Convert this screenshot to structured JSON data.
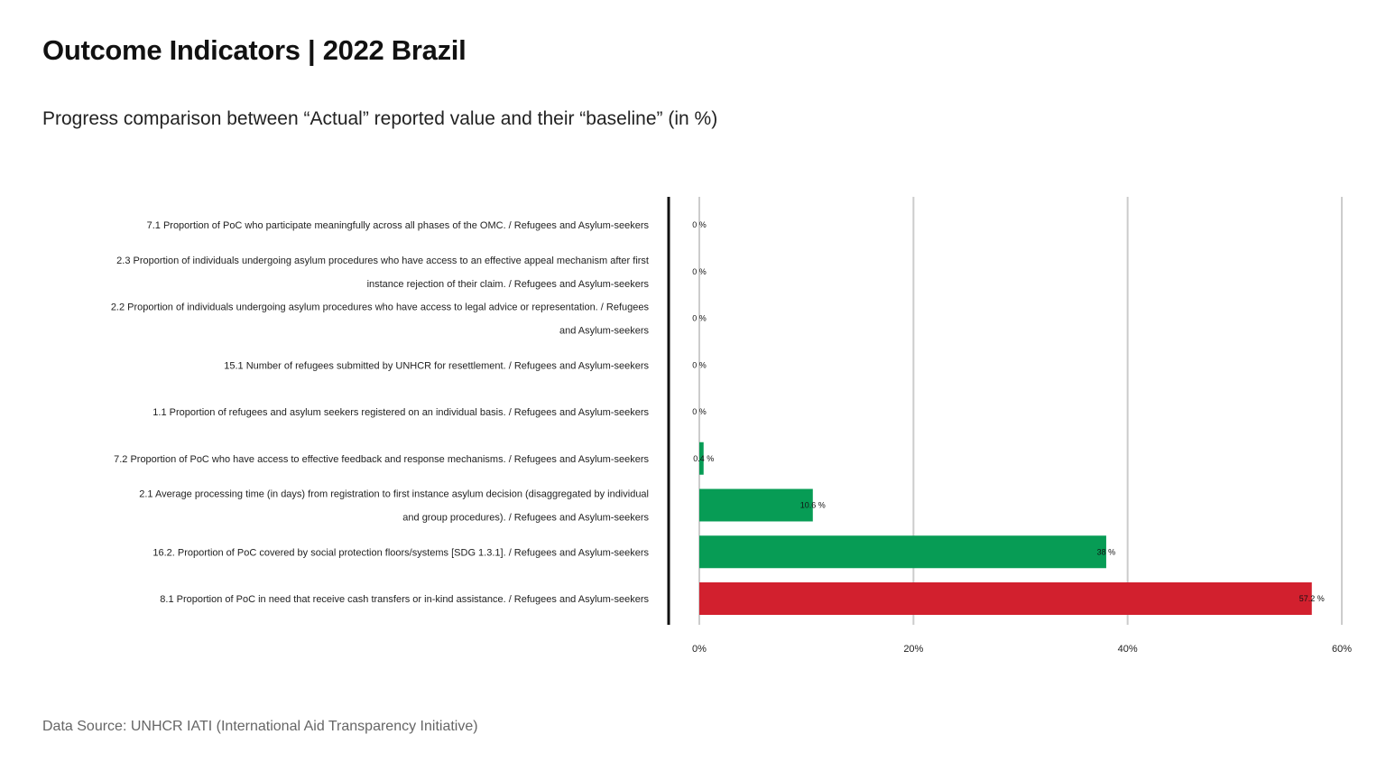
{
  "page": {
    "title": "Outcome Indicators | 2022 Brazil",
    "subtitle": "Progress comparison between “Actual” reported value and their “baseline” (in %)",
    "source": "Data Source: UNHCR IATI (International Aid Transparency Initiative)"
  },
  "colors": {
    "green": "#079C55",
    "red": "#D2202E",
    "grid": "#cccccc",
    "axis": "#111111"
  },
  "chart_data": {
    "type": "bar",
    "orientation": "horizontal",
    "title": "Outcome Indicators | 2022 Brazil",
    "subtitle": "Progress comparison between “Actual” reported value and their “baseline” (in %)",
    "xlim": [
      0,
      60
    ],
    "x_ticks": [
      "0%",
      "20%",
      "40%",
      "60%"
    ],
    "x_tick_values": [
      0,
      20,
      40,
      60
    ],
    "grid": true,
    "categories": [
      [
        "7.1 Proportion of PoC who participate meaningfully across all phases of the OMC. / Refugees and Asylum-seekers"
      ],
      [
        "2.3 Proportion of individuals undergoing asylum procedures who have access to an effective appeal mechanism after first",
        "instance rejection of their claim. / Refugees and Asylum-seekers"
      ],
      [
        "2.2 Proportion of individuals undergoing asylum procedures who have access to legal advice or representation. / Refugees",
        "and Asylum-seekers"
      ],
      [
        "15.1 Number of refugees submitted by UNHCR for resettlement. / Refugees and Asylum-seekers"
      ],
      [
        "1.1 Proportion of refugees and asylum seekers registered on an individual basis. / Refugees and Asylum-seekers"
      ],
      [
        "7.2 Proportion of PoC who have access to effective feedback and response mechanisms. / Refugees and Asylum-seekers"
      ],
      [
        "2.1 Average processing time (in days) from registration to first instance asylum decision (disaggregated by individual",
        "and group procedures). / Refugees and Asylum-seekers"
      ],
      [
        "16.2. Proportion of PoC covered by social protection floors/systems [SDG 1.3.1]. / Refugees and Asylum-seekers"
      ],
      [
        "8.1 Proportion of PoC in need that receive cash transfers or in-kind assistance. / Refugees and Asylum-seekers"
      ]
    ],
    "values": [
      0,
      0,
      0,
      0,
      0,
      0.4,
      10.6,
      38,
      57.2
    ],
    "value_labels": [
      "0 %",
      "0 %",
      "0 %",
      "0 %",
      "0 %",
      "0.4 %",
      "10.6 %",
      "38 %",
      "57.2 %"
    ],
    "bar_colors": [
      "green",
      "green",
      "green",
      "green",
      "green",
      "green",
      "green",
      "green",
      "red"
    ]
  }
}
